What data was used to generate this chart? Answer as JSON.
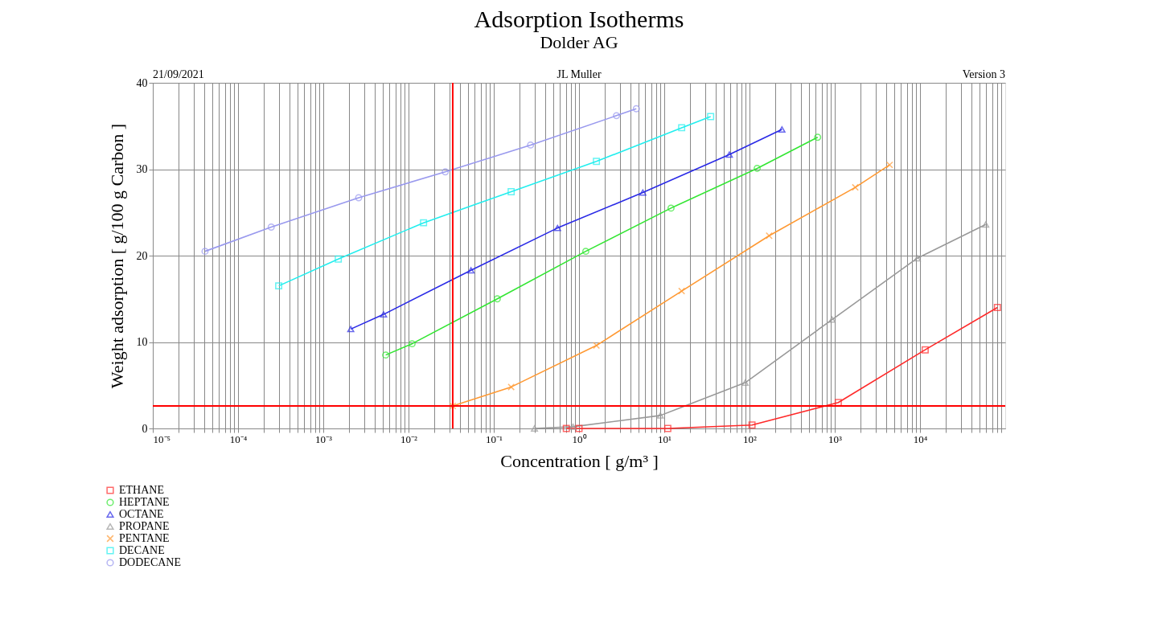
{
  "chart_data": {
    "type": "line",
    "title": "Adsorption Isotherms",
    "subtitle": "Dolder AG",
    "xlabel": "Concentration [ g/m³ ]",
    "ylabel": "Weight adsorption [ g/100 g Carbon ]",
    "annotations": [
      "21/09/2021",
      "JL Muller",
      "Version 3"
    ],
    "log": "x",
    "grid": true,
    "legend": "bottom left",
    "xlim": [
      1e-05,
      100000
    ],
    "ylim": [
      0,
      40
    ],
    "yticks": [
      0,
      10,
      20,
      30,
      40
    ],
    "xticks": [
      {
        "value": 1e-05,
        "label": "10⁻⁵"
      },
      {
        "value": 0.0001,
        "label": "10⁻⁴"
      },
      {
        "value": 0.001,
        "label": "10⁻³"
      },
      {
        "value": 0.01,
        "label": "10⁻²"
      },
      {
        "value": 0.1,
        "label": "10⁻¹"
      },
      {
        "value": 1,
        "label": "10⁰"
      },
      {
        "value": 10,
        "label": "10¹"
      },
      {
        "value": 100,
        "label": "10²"
      },
      {
        "value": 1000,
        "label": "10³"
      },
      {
        "value": 10000,
        "label": "10⁴"
      },
      {
        "value": 2e-05,
        "label": null
      },
      {
        "value": 3e-05,
        "label": null
      },
      {
        "value": 4e-05,
        "label": null
      },
      {
        "value": 5e-05,
        "label": null
      },
      {
        "value": 6e-05,
        "label": null
      },
      {
        "value": 7e-05,
        "label": null
      },
      {
        "value": 8e-05,
        "label": null
      },
      {
        "value": 9e-05,
        "label": null
      },
      {
        "value": 0.0002,
        "label": null
      },
      {
        "value": 0.0003,
        "label": null
      },
      {
        "value": 0.0004,
        "label": null
      },
      {
        "value": 0.0005,
        "label": null
      },
      {
        "value": 0.0006,
        "label": null
      },
      {
        "value": 0.0007,
        "label": null
      },
      {
        "value": 0.0008,
        "label": null
      },
      {
        "value": 0.0009,
        "label": null
      },
      {
        "value": 0.002,
        "label": null
      },
      {
        "value": 0.003,
        "label": null
      },
      {
        "value": 0.004,
        "label": null
      },
      {
        "value": 0.005,
        "label": null
      },
      {
        "value": 0.006,
        "label": null
      },
      {
        "value": 0.007,
        "label": null
      },
      {
        "value": 0.008,
        "label": null
      },
      {
        "value": 0.009,
        "label": null
      },
      {
        "value": 0.02,
        "label": null
      },
      {
        "value": 0.03,
        "label": null
      },
      {
        "value": 0.04,
        "label": null
      },
      {
        "value": 0.05,
        "label": null
      },
      {
        "value": 0.06,
        "label": null
      },
      {
        "value": 0.07,
        "label": null
      },
      {
        "value": 0.08,
        "label": null
      },
      {
        "value": 0.09,
        "label": null
      },
      {
        "value": 0.2,
        "label": null
      },
      {
        "value": 0.3,
        "label": null
      },
      {
        "value": 0.4,
        "label": null
      },
      {
        "value": 0.5,
        "label": null
      },
      {
        "value": 0.6,
        "label": null
      },
      {
        "value": 0.7,
        "label": null
      },
      {
        "value": 0.8,
        "label": null
      },
      {
        "value": 0.9,
        "label": null
      },
      {
        "value": 2,
        "label": null
      },
      {
        "value": 3,
        "label": null
      },
      {
        "value": 4,
        "label": null
      },
      {
        "value": 5,
        "label": null
      },
      {
        "value": 6,
        "label": null
      },
      {
        "value": 7,
        "label": null
      },
      {
        "value": 8,
        "label": null
      },
      {
        "value": 9,
        "label": null
      },
      {
        "value": 20,
        "label": null
      },
      {
        "value": 30,
        "label": null
      },
      {
        "value": 40,
        "label": null
      },
      {
        "value": 50,
        "label": null
      },
      {
        "value": 60,
        "label": null
      },
      {
        "value": 70,
        "label": null
      },
      {
        "value": 80,
        "label": null
      },
      {
        "value": 90,
        "label": null
      },
      {
        "value": 200,
        "label": null
      },
      {
        "value": 300,
        "label": null
      },
      {
        "value": 400,
        "label": null
      },
      {
        "value": 500,
        "label": null
      },
      {
        "value": 600,
        "label": null
      },
      {
        "value": 700,
        "label": null
      },
      {
        "value": 800,
        "label": null
      },
      {
        "value": 900,
        "label": null
      },
      {
        "value": 2000,
        "label": null
      },
      {
        "value": 3000,
        "label": null
      },
      {
        "value": 4000,
        "label": null
      },
      {
        "value": 5000,
        "label": null
      },
      {
        "value": 6000,
        "label": null
      },
      {
        "value": 7000,
        "label": null
      },
      {
        "value": 8000,
        "label": null
      },
      {
        "value": 9000,
        "label": null
      },
      {
        "value": 20000,
        "label": null
      },
      {
        "value": 30000,
        "label": null
      },
      {
        "value": 40000,
        "label": null
      },
      {
        "value": 50000,
        "label": null
      },
      {
        "value": 60000,
        "label": null
      },
      {
        "value": 70000,
        "label": null
      },
      {
        "value": 80000,
        "label": null
      },
      {
        "value": 90000,
        "label": null
      }
    ],
    "ref_lines": [
      {
        "axis": "x",
        "value": 0.033,
        "color": "#ff0000"
      },
      {
        "axis": "y",
        "value": 2.6,
        "color": "#ff0000"
      }
    ],
    "series": [
      {
        "name": "ETHANE",
        "color": "#ff2a2a",
        "marker": "square",
        "x": [
          0.71,
          1.0,
          11,
          107,
          1100,
          11500,
          81000
        ],
        "values": [
          0,
          0,
          0,
          0.4,
          3.0,
          9.1,
          14.0
        ]
      },
      {
        "name": "HEPTANE",
        "color": "#33e633",
        "marker": "circle",
        "x": [
          0.0054,
          0.011,
          0.11,
          1.2,
          12,
          123,
          630
        ],
        "values": [
          8.5,
          9.8,
          15.0,
          20.5,
          25.5,
          30.1,
          33.7
        ]
      },
      {
        "name": "OCTANE",
        "color": "#2a2ae6",
        "marker": "triangle",
        "x": [
          0.0021,
          0.0051,
          0.054,
          0.56,
          5.6,
          58,
          240
        ],
        "values": [
          11.5,
          13.2,
          18.3,
          23.2,
          27.3,
          31.7,
          34.6
        ]
      },
      {
        "name": "PROPANE",
        "color": "#999999",
        "marker": "triangle",
        "x": [
          0.3,
          0.85,
          9,
          89,
          930,
          9300,
          59000
        ],
        "values": [
          0,
          0.2,
          1.5,
          5.3,
          12.6,
          19.7,
          23.6
        ]
      },
      {
        "name": "PENTANE",
        "color": "#ff9933",
        "marker": "cross",
        "x": [
          0.033,
          0.16,
          1.6,
          16,
          170,
          1740,
          4400
        ],
        "values": [
          2.6,
          4.8,
          9.6,
          15.9,
          22.3,
          27.9,
          30.5
        ]
      },
      {
        "name": "DECANE",
        "color": "#22eeee",
        "marker": "square",
        "x": [
          0.0003,
          0.0015,
          0.015,
          0.16,
          1.6,
          16,
          35
        ],
        "values": [
          16.5,
          19.6,
          23.8,
          27.4,
          30.9,
          34.8,
          36.1
        ]
      },
      {
        "name": "DODECANE",
        "color": "#9999ee",
        "marker": "circle",
        "x": [
          4.1e-05,
          0.000245,
          0.0026,
          0.027,
          0.27,
          2.75,
          4.7
        ],
        "values": [
          20.5,
          23.3,
          26.7,
          29.7,
          32.8,
          36.2,
          37.0
        ]
      }
    ]
  }
}
